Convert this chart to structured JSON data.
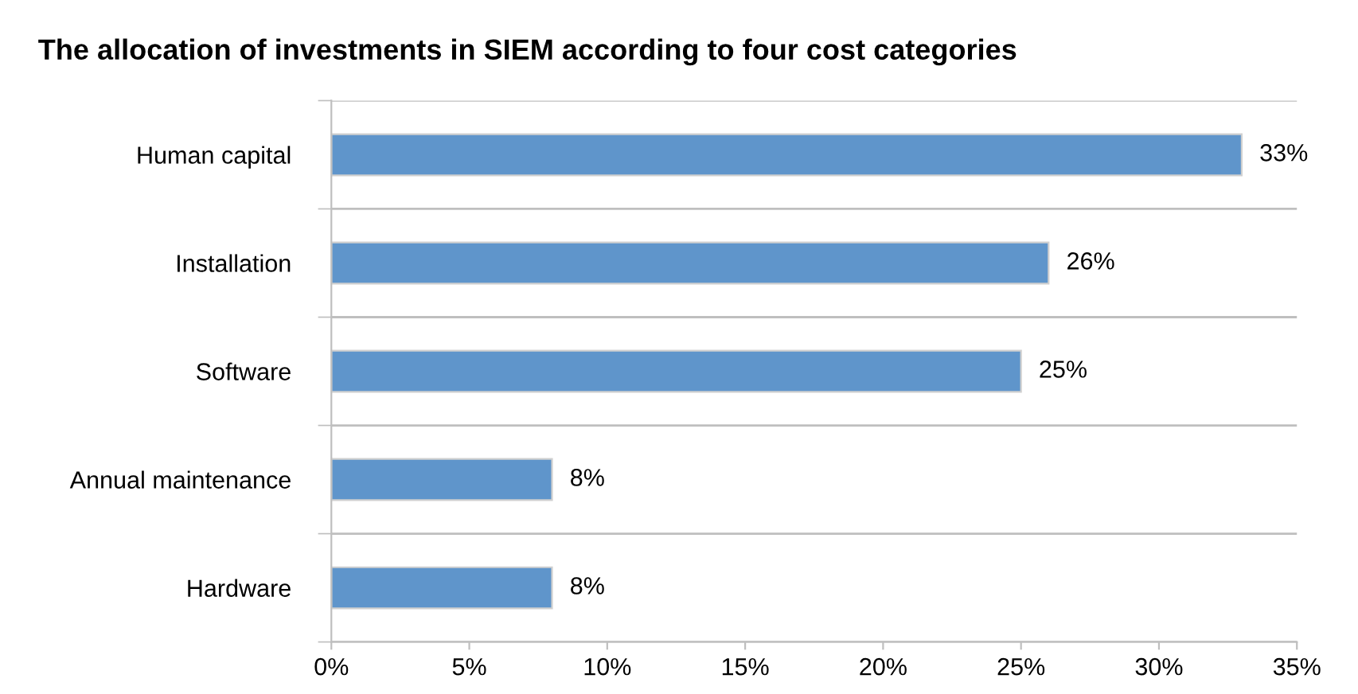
{
  "chart_data": {
    "type": "bar",
    "orientation": "horizontal",
    "title": "The allocation of investments in SIEM according to four cost categories",
    "categories": [
      "Human capital",
      "Installation",
      "Software",
      "Annual maintenance",
      "Hardware"
    ],
    "values": [
      33,
      26,
      25,
      8,
      8
    ],
    "color": "#5f95cb",
    "value_labels": [
      "33%",
      "26%",
      "25%",
      "8%",
      "8%"
    ],
    "xlim": [
      0,
      35
    ],
    "xticks": [
      {
        "value": 0,
        "label": "0%"
      },
      {
        "value": 5,
        "label": "5%"
      },
      {
        "value": 10,
        "label": "10%"
      },
      {
        "value": 15,
        "label": "15%"
      },
      {
        "value": 20,
        "label": "20%"
      },
      {
        "value": 25,
        "label": "25%"
      },
      {
        "value": 30,
        "label": "30%"
      },
      {
        "value": 35,
        "label": "35%"
      }
    ],
    "grid": "y",
    "legend": false
  }
}
